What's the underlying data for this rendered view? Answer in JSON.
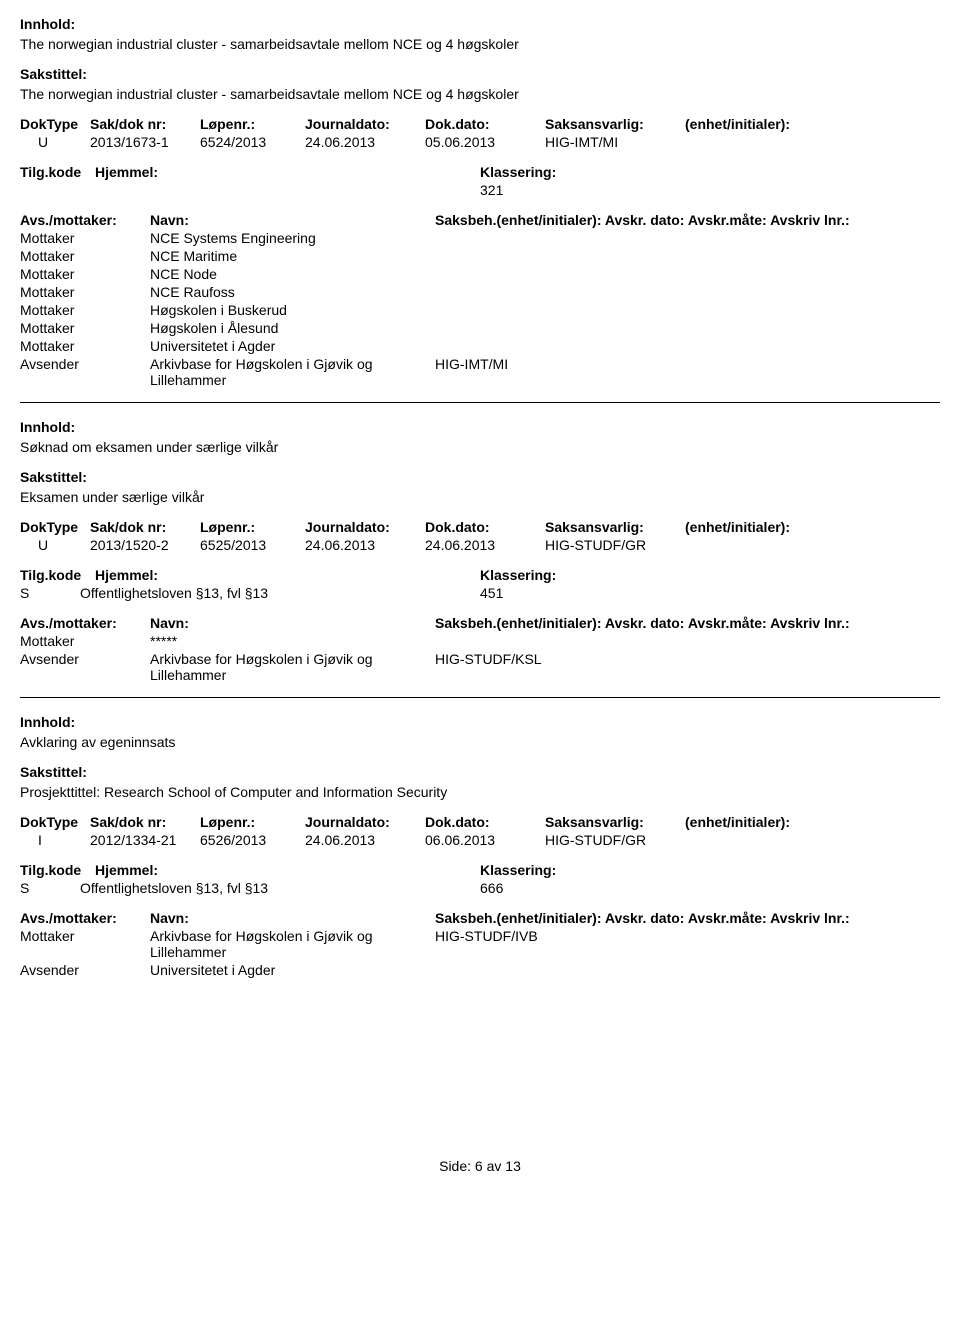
{
  "labels": {
    "innhold": "Innhold:",
    "sakstittel": "Sakstittel:",
    "doktype": "DokType",
    "saknr": "Sak/dok nr:",
    "lopenr": "Løpenr.:",
    "journaldato": "Journaldato:",
    "dokdato": "Dok.dato:",
    "saksansvarlig": "Saksansvarlig:",
    "enhet": "(enhet/initialer):",
    "tilgkode": "Tilg.kode",
    "hjemmel": "Hjemmel:",
    "klassering": "Klassering:",
    "avsmott": "Avs./mottaker:",
    "navn": "Navn:",
    "saksbeh_full": "Saksbeh.(enhet/initialer): Avskr. dato:  Avskr.måte:  Avskriv lnr.:"
  },
  "records": [
    {
      "innhold": "The norwegian industrial cluster - samarbeidsavtale mellom NCE og 4 høgskoler",
      "sakstittel": "The norwegian industrial cluster - samarbeidsavtale mellom NCE og 4 høgskoler",
      "doktype": "U",
      "saknr": "2013/1673-1",
      "lopenr": "6524/2013",
      "journaldato": "24.06.2013",
      "dokdato": "05.06.2013",
      "saksansvarlig": "HIG-IMT/MI",
      "enhet": "",
      "tilgkode": "",
      "hjemmel": "",
      "klassering": "321",
      "parties": [
        {
          "role": "Mottaker",
          "name": "NCE Systems Engineering",
          "saksbeh": ""
        },
        {
          "role": "Mottaker",
          "name": "NCE Maritime",
          "saksbeh": ""
        },
        {
          "role": "Mottaker",
          "name": "NCE Node",
          "saksbeh": ""
        },
        {
          "role": "Mottaker",
          "name": "NCE Raufoss",
          "saksbeh": ""
        },
        {
          "role": "Mottaker",
          "name": "Høgskolen i Buskerud",
          "saksbeh": ""
        },
        {
          "role": "Mottaker",
          "name": "Høgskolen i Ålesund",
          "saksbeh": ""
        },
        {
          "role": "Mottaker",
          "name": "Universitetet i Agder",
          "saksbeh": ""
        },
        {
          "role": "Avsender",
          "name": "Arkivbase for Høgskolen i Gjøvik og Lillehammer",
          "saksbeh": "HIG-IMT/MI"
        }
      ]
    },
    {
      "innhold": "Søknad om eksamen under særlige vilkår",
      "sakstittel": "Eksamen under særlige vilkår",
      "doktype": "U",
      "saknr": "2013/1520-2",
      "lopenr": "6525/2013",
      "journaldato": "24.06.2013",
      "dokdato": "24.06.2013",
      "saksansvarlig": "HIG-STUDF/GR",
      "enhet": "",
      "tilgkode": "S",
      "hjemmel": "Offentlighetsloven §13, fvl §13",
      "klassering": "451",
      "parties": [
        {
          "role": "Mottaker",
          "name": "*****",
          "saksbeh": ""
        },
        {
          "role": "Avsender",
          "name": "Arkivbase for Høgskolen i Gjøvik og Lillehammer",
          "saksbeh": "HIG-STUDF/KSL"
        }
      ]
    },
    {
      "innhold": "Avklaring av egeninnsats",
      "sakstittel": "Prosjekttittel: Research School of Computer and Information Security",
      "doktype": "I",
      "saknr": "2012/1334-21",
      "lopenr": "6526/2013",
      "journaldato": "24.06.2013",
      "dokdato": "06.06.2013",
      "saksansvarlig": "HIG-STUDF/GR",
      "enhet": "",
      "tilgkode": "S",
      "hjemmel": "Offentlighetsloven §13, fvl §13",
      "klassering": "666",
      "parties": [
        {
          "role": "Mottaker",
          "name": "Arkivbase for Høgskolen i Gjøvik og Lillehammer",
          "saksbeh": "HIG-STUDF/IVB"
        },
        {
          "role": "Avsender",
          "name": "Universitetet i Agder",
          "saksbeh": ""
        }
      ]
    }
  ],
  "footer": {
    "side": "Side:",
    "pagenum": "6",
    "av": "av",
    "pagecount": "13"
  }
}
